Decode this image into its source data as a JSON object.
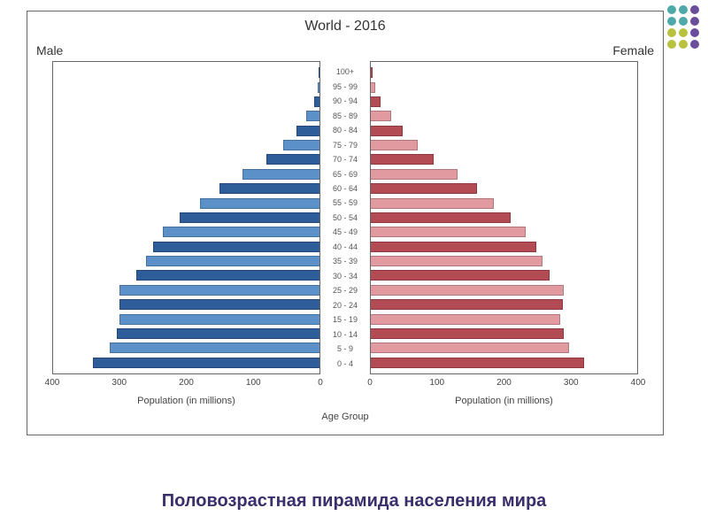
{
  "decoration": {
    "dot_colors": [
      "#4fa9a9",
      "#4fa9a9",
      "#6a4e9c",
      "#4fa9a9",
      "#4fa9a9",
      "#6a4e9c",
      "#b8c23d",
      "#b8c23d",
      "#6a4e9c",
      "#b8c23d",
      "#b8c23d",
      "#6a4e9c"
    ]
  },
  "chart": {
    "type": "population-pyramid",
    "title": "World - 2016",
    "male_label": "Male",
    "female_label": "Female",
    "x_axis_label": "Population (in millions)",
    "center_axis_label": "Age Group",
    "xlim": [
      0,
      400
    ],
    "xticks": [
      400,
      300,
      200,
      100,
      0
    ],
    "xticks_right": [
      0,
      100,
      200,
      300,
      400
    ],
    "background_color": "#ffffff",
    "border_color": "#666666",
    "age_labels": [
      "100+",
      "95 - 99",
      "90 - 94",
      "85 - 89",
      "80 - 84",
      "75 - 79",
      "70 - 74",
      "65 - 69",
      "60 - 64",
      "55 - 59",
      "50 - 54",
      "45 - 49",
      "40 - 44",
      "35 - 39",
      "30 - 34",
      "25 - 29",
      "20 - 24",
      "15 - 19",
      "10 - 14",
      "5 - 9",
      "0 - 4"
    ],
    "male_values": [
      1,
      3,
      8,
      20,
      35,
      55,
      80,
      115,
      150,
      180,
      210,
      235,
      250,
      260,
      275,
      300,
      300,
      300,
      305,
      315,
      340
    ],
    "female_values": [
      3,
      6,
      14,
      30,
      48,
      70,
      95,
      130,
      160,
      185,
      210,
      232,
      248,
      258,
      268,
      290,
      288,
      285,
      290,
      298,
      320
    ],
    "male_colors": [
      "#2f5d9a",
      "#5c90c9",
      "#2f5d9a",
      "#5c90c9",
      "#2f5d9a",
      "#5c90c9",
      "#2f5d9a",
      "#5c90c9",
      "#2f5d9a",
      "#5c90c9",
      "#2f5d9a",
      "#5c90c9",
      "#2f5d9a",
      "#5c90c9",
      "#2f5d9a",
      "#5c90c9",
      "#2f5d9a",
      "#5c90c9",
      "#2f5d9a",
      "#5c90c9",
      "#2f5d9a"
    ],
    "female_colors": [
      "#b24b54",
      "#e19aa0",
      "#b24b54",
      "#e19aa0",
      "#b24b54",
      "#e19aa0",
      "#b24b54",
      "#e19aa0",
      "#b24b54",
      "#e19aa0",
      "#b24b54",
      "#e19aa0",
      "#b24b54",
      "#e19aa0",
      "#b24b54",
      "#e19aa0",
      "#b24b54",
      "#e19aa0",
      "#b24b54",
      "#e19aa0",
      "#b24b54"
    ],
    "title_fontsize": 16,
    "label_fontsize": 14,
    "tick_fontsize": 10,
    "age_fontsize": 9
  },
  "caption": "Половозрастная пирамида населения мира"
}
